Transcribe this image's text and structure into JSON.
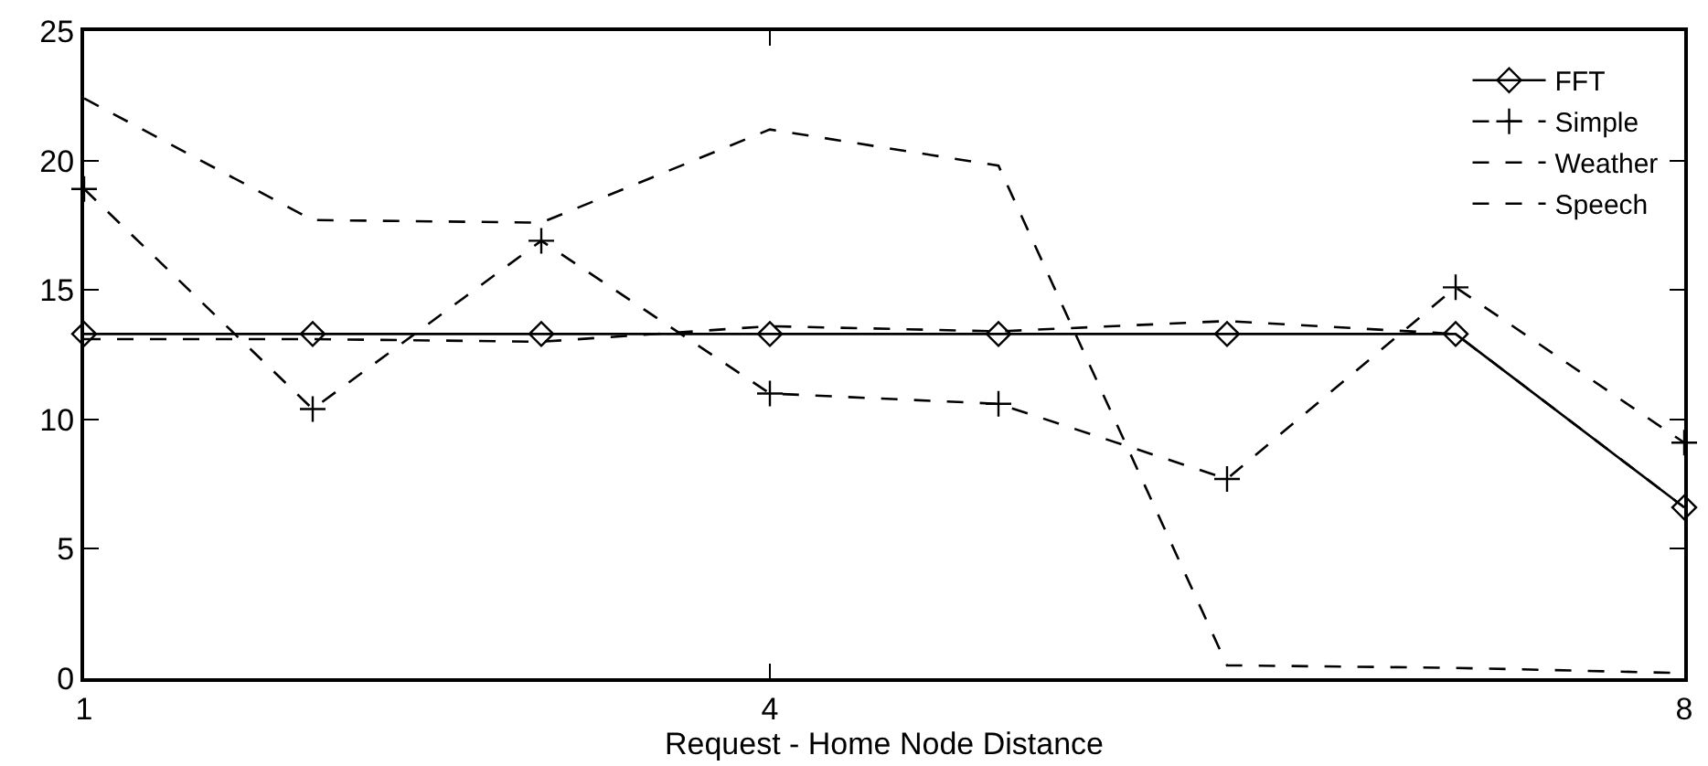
{
  "chart_data": {
    "type": "line",
    "xlabel": "Request - Home Node Distance",
    "x": [
      1,
      2,
      3,
      4,
      5,
      6,
      7,
      8
    ],
    "xlim": [
      1,
      8
    ],
    "xticks": [
      1,
      4,
      8
    ],
    "ylim": [
      0,
      25
    ],
    "yticks": [
      0,
      5,
      10,
      15,
      20,
      25
    ],
    "legend": "top right",
    "series": [
      {
        "name": "FFT",
        "color": "#000000",
        "marker": "diamond",
        "line_style": "solid",
        "values": [
          13.3,
          13.3,
          13.3,
          13.3,
          13.3,
          13.3,
          13.3,
          6.6
        ]
      },
      {
        "name": "Simple",
        "color": "#000000",
        "marker": "cross",
        "line_style": "dashed",
        "values": [
          18.9,
          10.4,
          16.9,
          11.0,
          10.6,
          7.7,
          15.1,
          9.1
        ]
      },
      {
        "name": "Weather",
        "color": "#000000",
        "marker": "none",
        "line_style": "dashed",
        "values": [
          22.4,
          17.7,
          17.6,
          21.2,
          19.8,
          0.5,
          0.4,
          0.2
        ]
      },
      {
        "name": "Speech",
        "color": "#000000",
        "marker": "none",
        "line_style": "dashed",
        "values": [
          13.1,
          13.1,
          13.0,
          13.6,
          13.4,
          13.8,
          13.3,
          6.6
        ]
      }
    ]
  }
}
